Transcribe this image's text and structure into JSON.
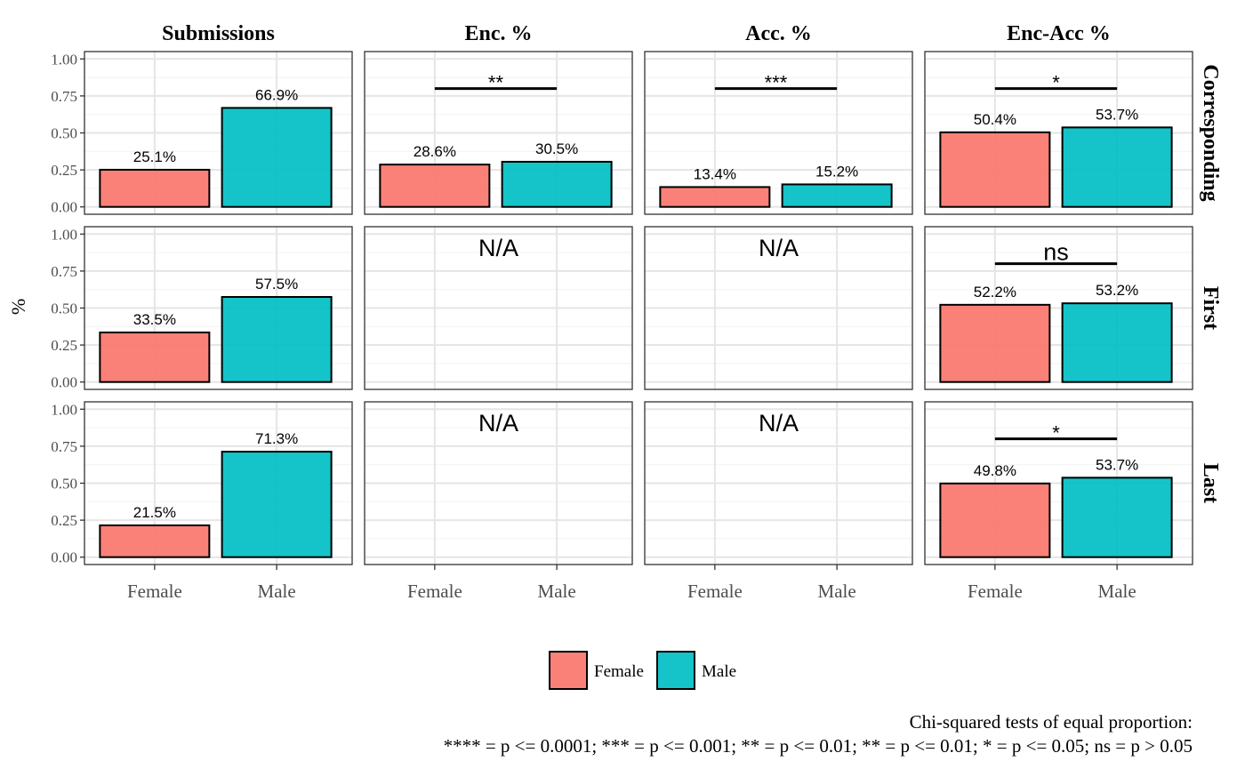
{
  "chart_data": {
    "type": "bar",
    "ylabel": "%",
    "ylim": [
      0,
      1
    ],
    "yticks": [
      "0.00",
      "0.25",
      "0.50",
      "0.75",
      "1.00"
    ],
    "categories": [
      "Female",
      "Male"
    ],
    "columns": [
      "Submissions",
      "Enc. %",
      "Acc. %",
      "Enc-Acc %"
    ],
    "rows": [
      "Corresponding",
      "First",
      "Last"
    ],
    "na_label": "N/A",
    "colors": {
      "Female": "#F8766D",
      "Male": "#00BFC4"
    },
    "legend": {
      "position": "bottom",
      "entries": [
        "Female",
        "Male"
      ]
    },
    "grid": true,
    "panels": [
      [
        {
          "values": [
            0.251,
            0.669
          ],
          "labels": [
            "25.1%",
            "66.9%"
          ],
          "sig": null
        },
        {
          "values": [
            0.286,
            0.305
          ],
          "labels": [
            "28.6%",
            "30.5%"
          ],
          "sig": "**"
        },
        {
          "values": [
            0.134,
            0.152
          ],
          "labels": [
            "13.4%",
            "15.2%"
          ],
          "sig": "***"
        },
        {
          "values": [
            0.504,
            0.537
          ],
          "labels": [
            "50.4%",
            "53.7%"
          ],
          "sig": "*"
        }
      ],
      [
        {
          "values": [
            0.335,
            0.575
          ],
          "labels": [
            "33.5%",
            "57.5%"
          ],
          "sig": null
        },
        {
          "na": true
        },
        {
          "na": true
        },
        {
          "values": [
            0.522,
            0.532
          ],
          "labels": [
            "52.2%",
            "53.2%"
          ],
          "sig": "ns"
        }
      ],
      [
        {
          "values": [
            0.215,
            0.713
          ],
          "labels": [
            "21.5%",
            "71.3%"
          ],
          "sig": null
        },
        {
          "na": true
        },
        {
          "na": true
        },
        {
          "values": [
            0.498,
            0.537
          ],
          "labels": [
            "49.8%",
            "53.7%"
          ],
          "sig": "*"
        }
      ]
    ],
    "caption": {
      "line1": "Chi-squared tests of equal proportion:",
      "line2": "**** = p <= 0.0001; *** = p <= 0.001; ** = p <= 0.01; ** = p <= 0.01; * = p <= 0.05; ns = p > 0.05"
    }
  }
}
